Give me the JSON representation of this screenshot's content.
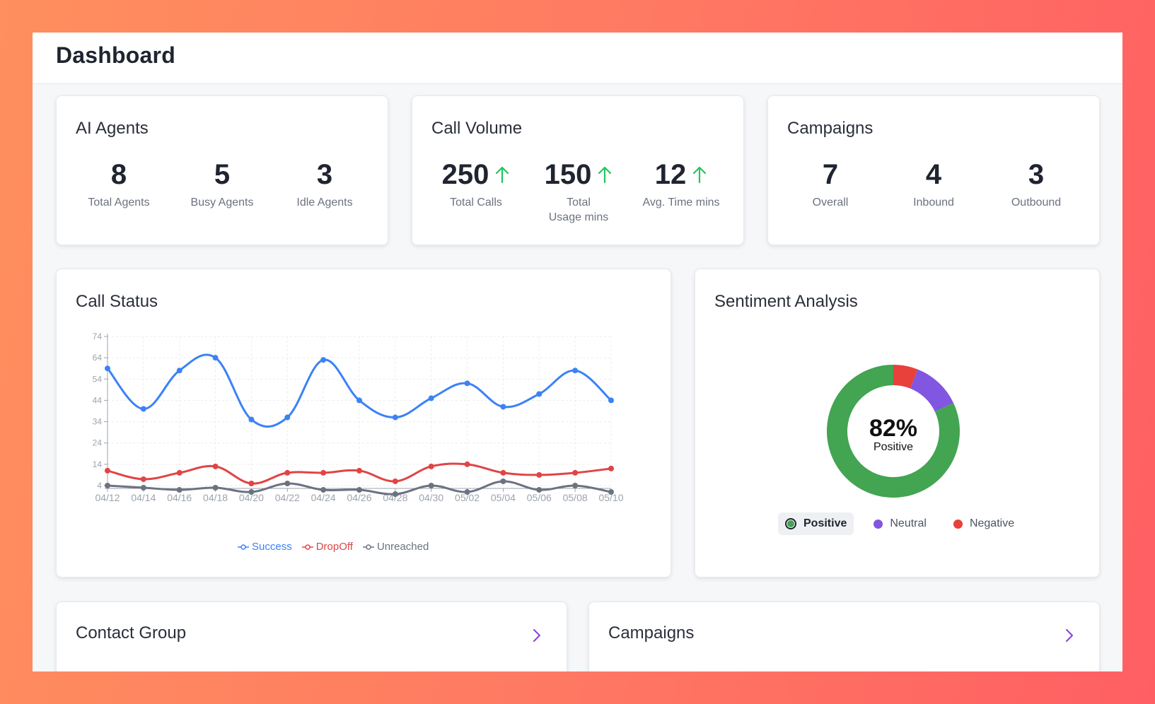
{
  "header": {
    "title": "Dashboard"
  },
  "ai_agents": {
    "title": "AI Agents",
    "stats": [
      {
        "value": "8",
        "label": "Total Agents"
      },
      {
        "value": "5",
        "label": "Busy Agents"
      },
      {
        "value": "3",
        "label": "Idle Agents"
      }
    ]
  },
  "call_volume": {
    "title": "Call Volume",
    "stats": [
      {
        "value": "250",
        "label": "Total Calls",
        "trend": "up"
      },
      {
        "value": "150",
        "label_line1": "Total",
        "label_line2": "Usage mins",
        "trend": "up"
      },
      {
        "value": "12",
        "label": "Avg. Time mins",
        "trend": "up"
      }
    ]
  },
  "campaigns_summary": {
    "title": "Campaigns",
    "stats": [
      {
        "value": "7",
        "label": "Overall"
      },
      {
        "value": "4",
        "label": "Inbound"
      },
      {
        "value": "3",
        "label": "Outbound"
      }
    ]
  },
  "call_status": {
    "title": "Call Status",
    "chart_data": {
      "type": "line",
      "title": "Call Status",
      "categories": [
        "04/12",
        "04/14",
        "04/16",
        "04/18",
        "04/20",
        "04/22",
        "04/24",
        "04/26",
        "04/28",
        "04/30",
        "05/02",
        "05/04",
        "05/06",
        "05/08",
        "05/10"
      ],
      "y_ticks": [
        4,
        14,
        24,
        34,
        44,
        54,
        64,
        74
      ],
      "ylim": [
        4,
        74
      ],
      "grid": true,
      "series": [
        {
          "name": "Success",
          "color": "#3b82f6",
          "values": [
            59,
            40,
            58,
            64,
            35,
            36,
            63,
            44,
            36,
            45,
            52,
            41,
            47,
            58,
            44
          ]
        },
        {
          "name": "DropOff",
          "color": "#e04545",
          "values": [
            11,
            7,
            10,
            13,
            5,
            10,
            10,
            11,
            6,
            13,
            14,
            10,
            9,
            10,
            12
          ]
        },
        {
          "name": "Unreached",
          "color": "#6b7280",
          "values": [
            4,
            3,
            2,
            3,
            1,
            5,
            2,
            2,
            0,
            4,
            1,
            6,
            2,
            4,
            1
          ]
        }
      ]
    }
  },
  "sentiment": {
    "title": "Sentiment Analysis",
    "center_value": "82%",
    "center_label": "Positive",
    "chart_data": {
      "type": "pie",
      "donut": true,
      "series": [
        {
          "name": "Positive",
          "value": 82,
          "color": "#43a451"
        },
        {
          "name": "Negative",
          "value": 6,
          "color": "#e8403b"
        },
        {
          "name": "Neutral",
          "value": 12,
          "color": "#8156e0"
        }
      ]
    },
    "legend": [
      {
        "label": "Positive",
        "color": "#43a451",
        "active": true
      },
      {
        "label": "Neutral",
        "color": "#8156e0",
        "active": false
      },
      {
        "label": "Negative",
        "color": "#e8403b",
        "active": false
      }
    ]
  },
  "contact_group": {
    "title": "Contact Group"
  },
  "campaigns_list": {
    "title": "Campaigns"
  },
  "colors": {
    "accent_purple": "#8b3dd9",
    "trend_up": "#22c55e"
  }
}
